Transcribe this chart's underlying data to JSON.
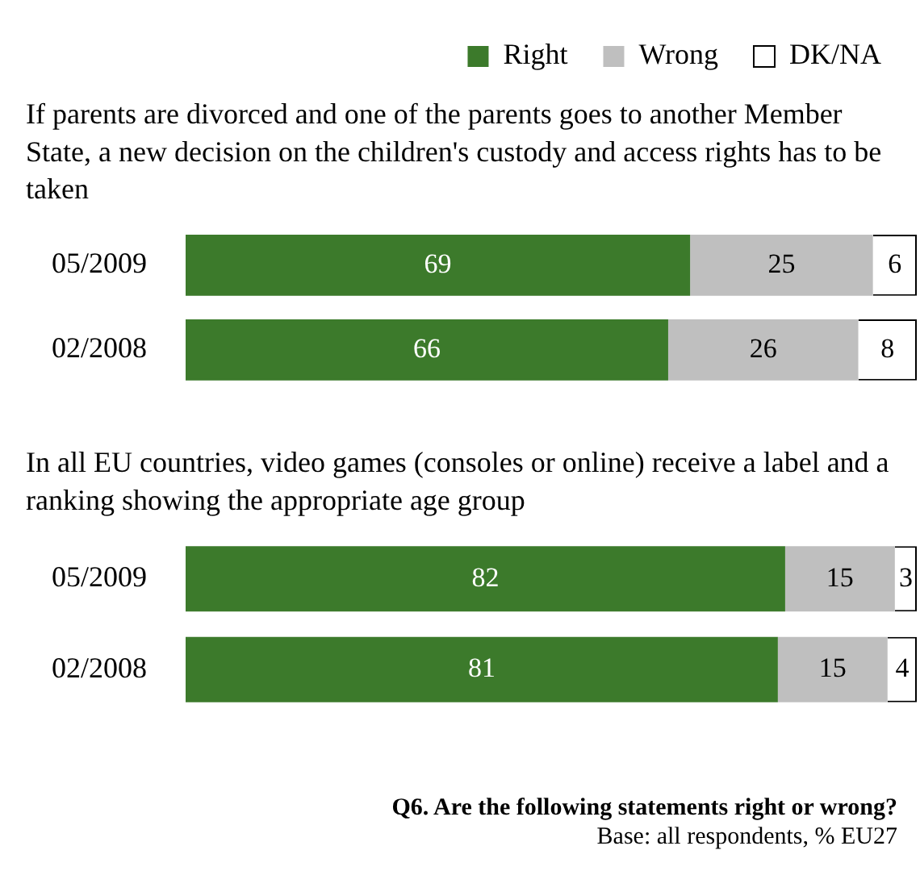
{
  "chart_data": [
    {
      "type": "bar",
      "orientation": "horizontal",
      "stacked": true,
      "data_labels": true,
      "legend": "top right",
      "title": "If parents are divorced and one of the parents goes to another Member State, a new decision on the children's custody and access rights has to be taken",
      "categories": [
        "05/2009",
        "02/2008"
      ],
      "series": [
        {
          "name": "Right",
          "color": "#3c7a2b",
          "values": [
            69,
            66
          ]
        },
        {
          "name": "Wrong",
          "color": "#bfbfbf",
          "values": [
            25,
            26
          ]
        },
        {
          "name": "DK/NA",
          "color": "#ffffff",
          "values": [
            6,
            8
          ]
        }
      ]
    },
    {
      "type": "bar",
      "orientation": "horizontal",
      "stacked": true,
      "data_labels": true,
      "title": "In all EU countries, video games (consoles or online) receive a label and a ranking showing the appropriate age group",
      "categories": [
        "05/2009",
        "02/2008"
      ],
      "series": [
        {
          "color": "#3c7a2b",
          "values": [
            82,
            81
          ]
        },
        {
          "color": "#bfbfbf",
          "values": [
            15,
            15
          ]
        },
        {
          "color": "#ffffff",
          "values": [
            3,
            4
          ]
        }
      ],
      "annotations": [
        "Q6. Are the following statements right or wrong?",
        "Base: all respondents, % EU27"
      ]
    }
  ]
}
